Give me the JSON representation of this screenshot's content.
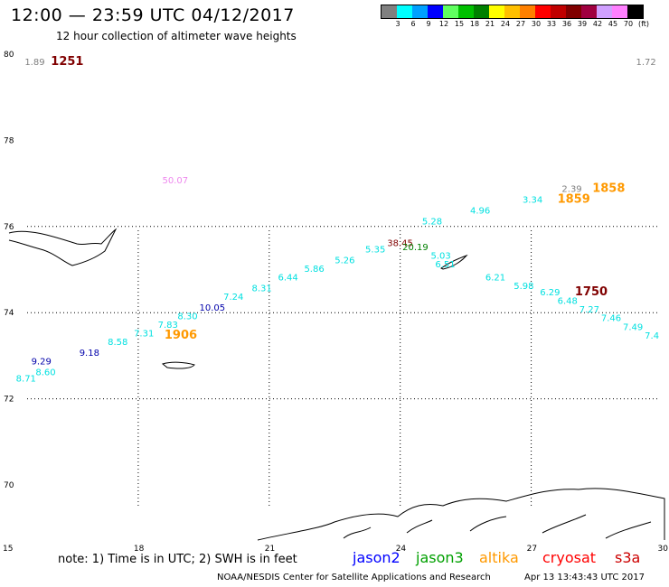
{
  "header": {
    "title": "12:00 — 23:59 UTC 04/12/2017",
    "subtitle": "12 hour collection of altimeter wave heights"
  },
  "legend": {
    "colors": [
      "#808080",
      "#00ffff",
      "#00a0ff",
      "#0000ff",
      "#60ff60",
      "#00c000",
      "#008000",
      "#ffff00",
      "#ffc000",
      "#ff8000",
      "#ff0000",
      "#c00000",
      "#800000",
      "#a00040",
      "#d0a0ff",
      "#ff80ff",
      "#000000"
    ],
    "labels": [
      "3",
      "6",
      "9",
      "12",
      "15",
      "18",
      "21",
      "24",
      "27",
      "30",
      "33",
      "36",
      "39",
      "42",
      "45",
      "70",
      "(ft)"
    ]
  },
  "axes": {
    "x_ticks": [
      "15",
      "18",
      "21",
      "24",
      "27",
      "30"
    ],
    "y_ticks": [
      "80",
      "78",
      "76",
      "74",
      "72",
      "70"
    ]
  },
  "labels": [
    {
      "text": "1.89",
      "color": "#808080",
      "lon": 15.4,
      "lat": 79.75
    },
    {
      "text": "1251",
      "color": "#800000",
      "lon": 16.0,
      "lat": 79.75
    },
    {
      "text": "1.72",
      "color": "#808080",
      "lon": 29.4,
      "lat": 79.75
    },
    {
      "text": "50.07",
      "color": "#ee88ee",
      "lon": 18.55,
      "lat": 77.0
    },
    {
      "text": "2.39",
      "color": "#808080",
      "lon": 27.7,
      "lat": 76.8
    },
    {
      "text": "1858",
      "color": "#ff9900",
      "lon": 28.4,
      "lat": 76.8
    },
    {
      "text": "3.34",
      "color": "#00e0e0",
      "lon": 26.8,
      "lat": 76.55
    },
    {
      "text": "1859",
      "color": "#ff9900",
      "lon": 27.6,
      "lat": 76.55
    },
    {
      "text": "4.96",
      "color": "#00e0e0",
      "lon": 25.6,
      "lat": 76.3
    },
    {
      "text": "5.28",
      "color": "#00e0e0",
      "lon": 24.5,
      "lat": 76.05
    },
    {
      "text": "38.45",
      "color": "#800000",
      "lon": 23.7,
      "lat": 75.55
    },
    {
      "text": "20.19",
      "color": "#008000",
      "lon": 24.05,
      "lat": 75.45
    },
    {
      "text": "5.35",
      "color": "#00e0e0",
      "lon": 23.2,
      "lat": 75.4
    },
    {
      "text": "5.26",
      "color": "#00e0e0",
      "lon": 22.5,
      "lat": 75.15
    },
    {
      "text": "5.03",
      "color": "#00e0e0",
      "lon": 24.7,
      "lat": 75.25
    },
    {
      "text": "6.51",
      "color": "#00e0e0",
      "lon": 24.8,
      "lat": 75.05
    },
    {
      "text": "5.86",
      "color": "#00e0e0",
      "lon": 21.8,
      "lat": 74.95
    },
    {
      "text": "6.21",
      "color": "#00e0e0",
      "lon": 25.95,
      "lat": 74.75
    },
    {
      "text": "6.44",
      "color": "#00e0e0",
      "lon": 21.2,
      "lat": 74.75
    },
    {
      "text": "5.98",
      "color": "#00e0e0",
      "lon": 26.6,
      "lat": 74.55
    },
    {
      "text": "8.31",
      "color": "#00e0e0",
      "lon": 20.6,
      "lat": 74.5
    },
    {
      "text": "6.29",
      "color": "#00e0e0",
      "lon": 27.2,
      "lat": 74.4
    },
    {
      "text": "1750",
      "color": "#800000",
      "lon": 28.0,
      "lat": 74.4
    },
    {
      "text": "7.24",
      "color": "#00e0e0",
      "lon": 19.95,
      "lat": 74.3
    },
    {
      "text": "6.48",
      "color": "#00e0e0",
      "lon": 27.6,
      "lat": 74.2
    },
    {
      "text": "10.05",
      "color": "#0000aa",
      "lon": 19.4,
      "lat": 74.05
    },
    {
      "text": "7.27",
      "color": "#00e0e0",
      "lon": 28.1,
      "lat": 74.0
    },
    {
      "text": "8.30",
      "color": "#00e0e0",
      "lon": 18.9,
      "lat": 73.85
    },
    {
      "text": "7.46",
      "color": "#00e0e0",
      "lon": 28.6,
      "lat": 73.8
    },
    {
      "text": "7.83",
      "color": "#00e0e0",
      "lon": 18.45,
      "lat": 73.65
    },
    {
      "text": "7.49",
      "color": "#00e0e0",
      "lon": 29.1,
      "lat": 73.6
    },
    {
      "text": "7.31",
      "color": "#00e0e0",
      "lon": 17.9,
      "lat": 73.45
    },
    {
      "text": "1906",
      "color": "#ff9900",
      "lon": 18.6,
      "lat": 73.4
    },
    {
      "text": "7.4",
      "color": "#00e0e0",
      "lon": 29.6,
      "lat": 73.4
    },
    {
      "text": "8.58",
      "color": "#00e0e0",
      "lon": 17.3,
      "lat": 73.25
    },
    {
      "text": "9.18",
      "color": "#0000aa",
      "lon": 16.65,
      "lat": 73.0
    },
    {
      "text": "9.29",
      "color": "#0000aa",
      "lon": 15.55,
      "lat": 72.8
    },
    {
      "text": "8.60",
      "color": "#00e0e0",
      "lon": 15.65,
      "lat": 72.55
    },
    {
      "text": "8.71",
      "color": "#00e0e0",
      "lon": 15.2,
      "lat": 72.4
    }
  ],
  "footer": {
    "note": "note: 1) Time is in UTC; 2) SWH is in feet",
    "satellites": [
      {
        "name": "jason2",
        "color": "#0000ff"
      },
      {
        "name": "jason3",
        "color": "#00a000"
      },
      {
        "name": "altika",
        "color": "#ff9900"
      },
      {
        "name": "cryosat",
        "color": "#ff0000"
      },
      {
        "name": "s3a",
        "color": "#cc0000"
      }
    ],
    "credit": "NOAA/NESDIS Center for Satellite Applications and Research",
    "timestamp": "Apr 13 13:43:43 UTC 2017"
  }
}
